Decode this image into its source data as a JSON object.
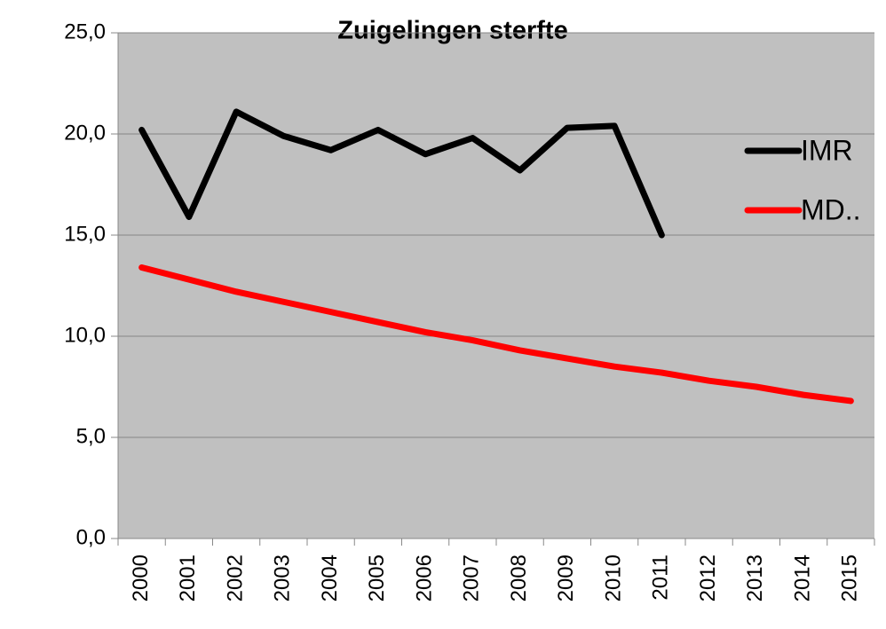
{
  "chart_data": {
    "type": "line",
    "title": "Zuigelingen sterfte",
    "categories": [
      "2000",
      "2001",
      "2002",
      "2003",
      "2004",
      "2005",
      "2006",
      "2007",
      "2008",
      "2009",
      "2010",
      "2011",
      "2012",
      "2013",
      "2014",
      "2015"
    ],
    "series": [
      {
        "name": "IMR",
        "color": "#000000",
        "values": [
          20.2,
          15.9,
          21.1,
          19.9,
          19.2,
          20.2,
          19.0,
          19.8,
          18.2,
          20.3,
          20.4,
          15.0,
          null,
          null,
          null,
          null
        ]
      },
      {
        "name": "MD..",
        "color": "#ff0000",
        "values": [
          13.4,
          12.8,
          12.2,
          11.7,
          11.2,
          10.7,
          10.2,
          9.8,
          9.3,
          8.9,
          8.5,
          8.2,
          7.8,
          7.5,
          7.1,
          6.8
        ]
      }
    ],
    "ylim": [
      0,
      25
    ],
    "yticks": [
      {
        "value": 0,
        "label": "0,0"
      },
      {
        "value": 5,
        "label": "5,0"
      },
      {
        "value": 10,
        "label": "10,0"
      },
      {
        "value": 15,
        "label": "15,0"
      },
      {
        "value": 20,
        "label": "20,0"
      },
      {
        "value": 25,
        "label": "25,0"
      }
    ],
    "grid": true,
    "legend": "right",
    "background": "#c0c0c0"
  }
}
